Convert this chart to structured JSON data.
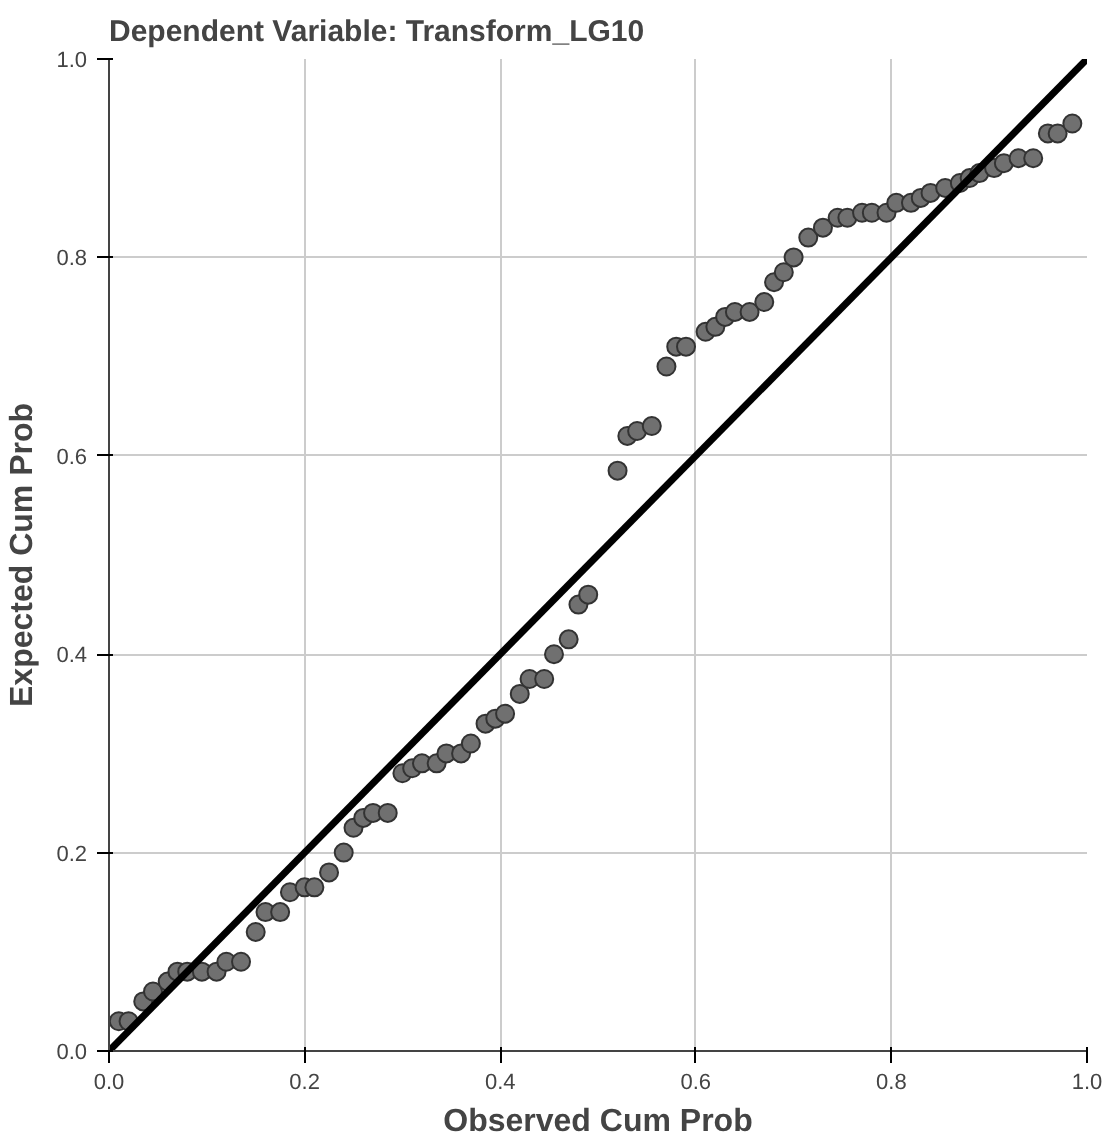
{
  "chart_data": {
    "type": "scatter",
    "title": "Dependent Variable: Transform_LG10",
    "xlabel": "Observed Cum Prob",
    "ylabel": "Expected Cum Prob",
    "xlim": [
      0,
      1
    ],
    "ylim": [
      0,
      1
    ],
    "xticks": [
      {
        "value": 0,
        "label": "0.0"
      },
      0.2,
      0.4,
      0.6,
      0.8,
      {
        "value": 1,
        "label": "1.0"
      }
    ],
    "yticks": [
      {
        "value": 0,
        "label": "0.0"
      },
      0.2,
      0.4,
      0.6,
      0.8,
      {
        "value": 1,
        "label": "1.0"
      }
    ],
    "grid": true,
    "series": [
      {
        "color": "#707070",
        "marker": "circle",
        "x": [
          0.01,
          0.02,
          0.035,
          0.045,
          0.06,
          0.07,
          0.08,
          0.095,
          0.11,
          0.12,
          0.135,
          0.15,
          0.16,
          0.175,
          0.185,
          0.2,
          0.21,
          0.225,
          0.24,
          0.25,
          0.26,
          0.27,
          0.285,
          0.3,
          0.31,
          0.32,
          0.335,
          0.345,
          0.36,
          0.37,
          0.385,
          0.395,
          0.405,
          0.42,
          0.43,
          0.445,
          0.455,
          0.47,
          0.48,
          0.49,
          0.52,
          0.53,
          0.54,
          0.555,
          0.57,
          0.58,
          0.59,
          0.61,
          0.62,
          0.63,
          0.64,
          0.655,
          0.67,
          0.68,
          0.69,
          0.7,
          0.715,
          0.73,
          0.745,
          0.755,
          0.77,
          0.78,
          0.795,
          0.805,
          0.82,
          0.83,
          0.84,
          0.855,
          0.87,
          0.88,
          0.89,
          0.905,
          0.915,
          0.93,
          0.945,
          0.96,
          0.97,
          0.985
        ],
        "values": [
          0.03,
          0.03,
          0.05,
          0.06,
          0.07,
          0.08,
          0.08,
          0.08,
          0.08,
          0.09,
          0.09,
          0.12,
          0.14,
          0.14,
          0.16,
          0.165,
          0.165,
          0.18,
          0.2,
          0.225,
          0.235,
          0.24,
          0.24,
          0.28,
          0.285,
          0.29,
          0.29,
          0.3,
          0.3,
          0.31,
          0.33,
          0.335,
          0.34,
          0.36,
          0.375,
          0.375,
          0.4,
          0.415,
          0.45,
          0.46,
          0.585,
          0.62,
          0.625,
          0.63,
          0.69,
          0.71,
          0.71,
          0.725,
          0.73,
          0.74,
          0.745,
          0.745,
          0.755,
          0.775,
          0.785,
          0.8,
          0.82,
          0.83,
          0.84,
          0.84,
          0.845,
          0.845,
          0.845,
          0.855,
          0.855,
          0.86,
          0.865,
          0.87,
          0.875,
          0.88,
          0.885,
          0.89,
          0.895,
          0.9,
          0.9,
          0.925,
          0.925,
          0.935
        ]
      },
      {
        "type": "line",
        "color": "#000000",
        "x": [
          0,
          1
        ],
        "values": [
          0,
          1
        ],
        "line_style": "solid",
        "marker": "none"
      }
    ]
  }
}
